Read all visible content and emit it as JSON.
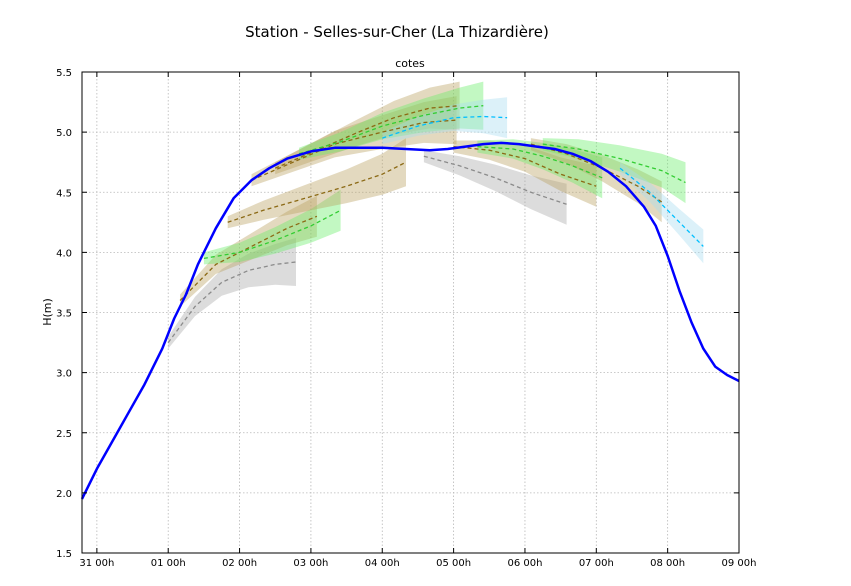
{
  "figure_title": "Station - Selles-sur-Cher (La Thizardière)",
  "chart_data": {
    "type": "line",
    "title": "cotes",
    "xlabel": "",
    "ylabel": "H(m)",
    "x_units": "hours since 31 00h",
    "xlim": [
      -5,
      216
    ],
    "ylim": [
      1.5,
      5.5
    ],
    "x_ticks": [
      {
        "x": 0,
        "label": "31 00h"
      },
      {
        "x": 24,
        "label": "01 00h"
      },
      {
        "x": 48,
        "label": "02 00h"
      },
      {
        "x": 72,
        "label": "03 00h"
      },
      {
        "x": 96,
        "label": "04 00h"
      },
      {
        "x": 120,
        "label": "05 00h"
      },
      {
        "x": 144,
        "label": "06 00h"
      },
      {
        "x": 168,
        "label": "07 00h"
      },
      {
        "x": 192,
        "label": "08 00h"
      },
      {
        "x": 216,
        "label": "09 00h"
      }
    ],
    "y_ticks": [
      "1.5",
      "2.0",
      "2.5",
      "3.0",
      "3.5",
      "4.0",
      "4.5",
      "5.0",
      "5.5"
    ],
    "grid": true,
    "observed": {
      "color": "#0000ff",
      "x": [
        -5,
        0,
        8,
        16,
        22,
        26,
        30,
        34,
        40,
        46,
        52,
        58,
        64,
        72,
        80,
        88,
        96,
        104,
        112,
        118,
        124,
        130,
        136,
        142,
        148,
        154,
        160,
        166,
        172,
        178,
        184,
        188,
        192,
        196,
        200,
        204,
        208,
        212,
        216
      ],
      "y": [
        1.95,
        2.2,
        2.55,
        2.9,
        3.2,
        3.45,
        3.65,
        3.9,
        4.2,
        4.45,
        4.6,
        4.7,
        4.78,
        4.84,
        4.87,
        4.87,
        4.87,
        4.86,
        4.85,
        4.86,
        4.88,
        4.9,
        4.91,
        4.9,
        4.88,
        4.86,
        4.82,
        4.76,
        4.67,
        4.55,
        4.38,
        4.22,
        3.97,
        3.68,
        3.42,
        3.2,
        3.05,
        2.98,
        2.93
      ]
    },
    "forecasts": [
      {
        "color": "#8b8b8b",
        "band": "#a8a8a8",
        "x": [
          24,
          33,
          42,
          51,
          60,
          67
        ],
        "y": [
          3.25,
          3.55,
          3.75,
          3.85,
          3.9,
          3.92
        ]
      },
      {
        "color": "#8b6914",
        "band": "#b8a060",
        "x": [
          28,
          40,
          52,
          64,
          74
        ],
        "y": [
          3.6,
          3.9,
          4.05,
          4.2,
          4.3
        ]
      },
      {
        "color": "#32cd32",
        "band": "#66ee66",
        "x": [
          36,
          48,
          60,
          72,
          82
        ],
        "y": [
          3.95,
          4.0,
          4.1,
          4.22,
          4.35
        ]
      },
      {
        "color": "#8b6914",
        "band": "#b8a060",
        "x": [
          44,
          56,
          70,
          84,
          96,
          104
        ],
        "y": [
          4.25,
          4.35,
          4.45,
          4.55,
          4.65,
          4.75
        ]
      },
      {
        "color": "#8b6914",
        "band": "#b8a060",
        "x": [
          52,
          66,
          80,
          96,
          110,
          121
        ],
        "y": [
          4.6,
          4.75,
          4.9,
          5.0,
          5.08,
          5.1
        ]
      },
      {
        "color": "#8b6914",
        "band": "#b8a060",
        "x": [
          60,
          74,
          88,
          100,
          112,
          122
        ],
        "y": [
          4.7,
          4.85,
          5.0,
          5.12,
          5.2,
          5.22
        ]
      },
      {
        "color": "#32cd32",
        "band": "#66ee66",
        "x": [
          68,
          82,
          96,
          110,
          122,
          130
        ],
        "y": [
          4.82,
          4.92,
          5.05,
          5.14,
          5.2,
          5.22
        ]
      },
      {
        "color": "#00bfff",
        "band": "#a8dcf0",
        "x": [
          96,
          108,
          120,
          130,
          138
        ],
        "y": [
          4.95,
          5.05,
          5.12,
          5.13,
          5.12
        ]
      },
      {
        "color": "#8b8b8b",
        "band": "#a8a8a8",
        "x": [
          110,
          122,
          134,
          146,
          158
        ],
        "y": [
          4.8,
          4.72,
          4.62,
          4.5,
          4.4
        ]
      },
      {
        "color": "#8b6914",
        "band": "#b8a060",
        "x": [
          120,
          132,
          144,
          156,
          168
        ],
        "y": [
          4.88,
          4.85,
          4.78,
          4.65,
          4.55
        ]
      },
      {
        "color": "#32cd32",
        "band": "#66ee66",
        "x": [
          128,
          140,
          150,
          160,
          170
        ],
        "y": [
          4.88,
          4.86,
          4.8,
          4.72,
          4.62
        ]
      },
      {
        "color": "#8b6914",
        "band": "#b8a060",
        "x": [
          146,
          158,
          170,
          182,
          190
        ],
        "y": [
          4.9,
          4.82,
          4.7,
          4.55,
          4.42
        ]
      },
      {
        "color": "#32cd32",
        "band": "#66ee66",
        "x": [
          150,
          162,
          176,
          190,
          198
        ],
        "y": [
          4.9,
          4.86,
          4.78,
          4.68,
          4.58
        ]
      },
      {
        "color": "#00bfff",
        "band": "#a8dcf0",
        "x": [
          176,
          186,
          196,
          204
        ],
        "y": [
          4.7,
          4.5,
          4.25,
          4.05
        ]
      }
    ]
  }
}
